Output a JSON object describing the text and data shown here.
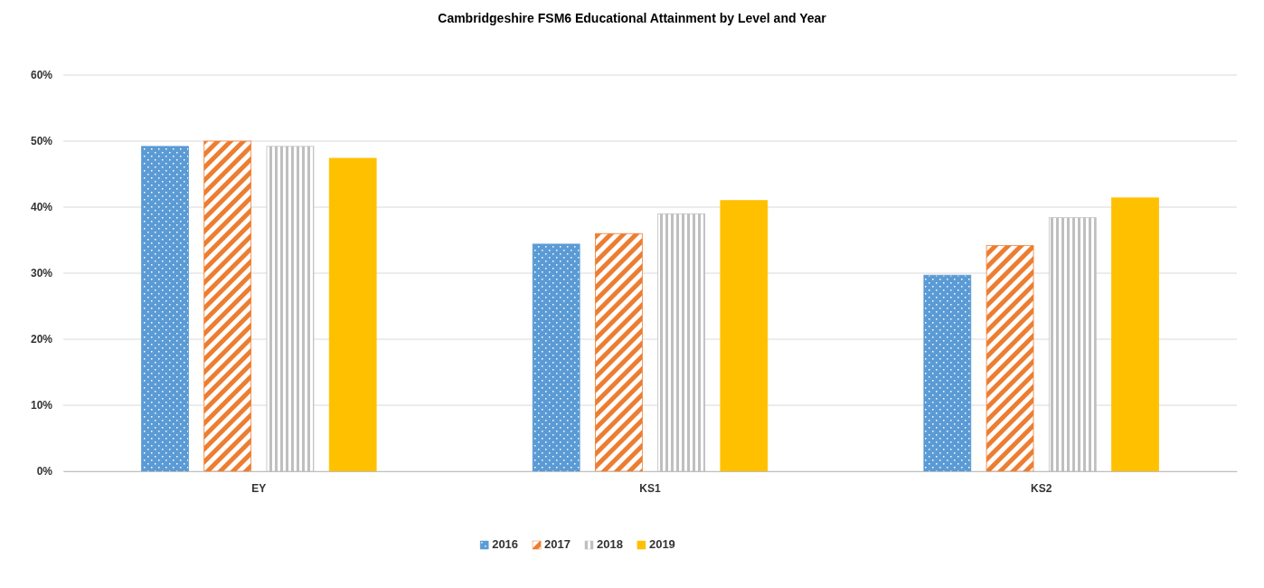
{
  "chart_data": {
    "type": "bar",
    "title": "Cambridgeshire FSM6 Educational Attainment by Level and Year",
    "categories": [
      "EY",
      "KS1",
      "KS2"
    ],
    "series": [
      {
        "name": "2016",
        "color": "#5b9bd5",
        "values": [
          49.2,
          34.4,
          29.7
        ]
      },
      {
        "name": "2017",
        "color": "#ed7d31",
        "values": [
          50.0,
          36.0,
          34.2
        ]
      },
      {
        "name": "2018",
        "color": "#bfbfbf",
        "values": [
          49.2,
          39.0,
          38.4
        ]
      },
      {
        "name": "2019",
        "color": "#ffc000",
        "values": [
          47.4,
          41.0,
          41.4
        ]
      }
    ],
    "ylim": [
      0,
      60
    ],
    "yticks": [
      {
        "value": 0,
        "label": "0%"
      },
      {
        "value": 10,
        "label": "10%"
      },
      {
        "value": 20,
        "label": "20%"
      },
      {
        "value": 30,
        "label": "30%"
      },
      {
        "value": 40,
        "label": "40%"
      },
      {
        "value": 50,
        "label": "50%"
      },
      {
        "value": 60,
        "label": "60%"
      }
    ],
    "grid": "y",
    "legend": "bottom"
  }
}
